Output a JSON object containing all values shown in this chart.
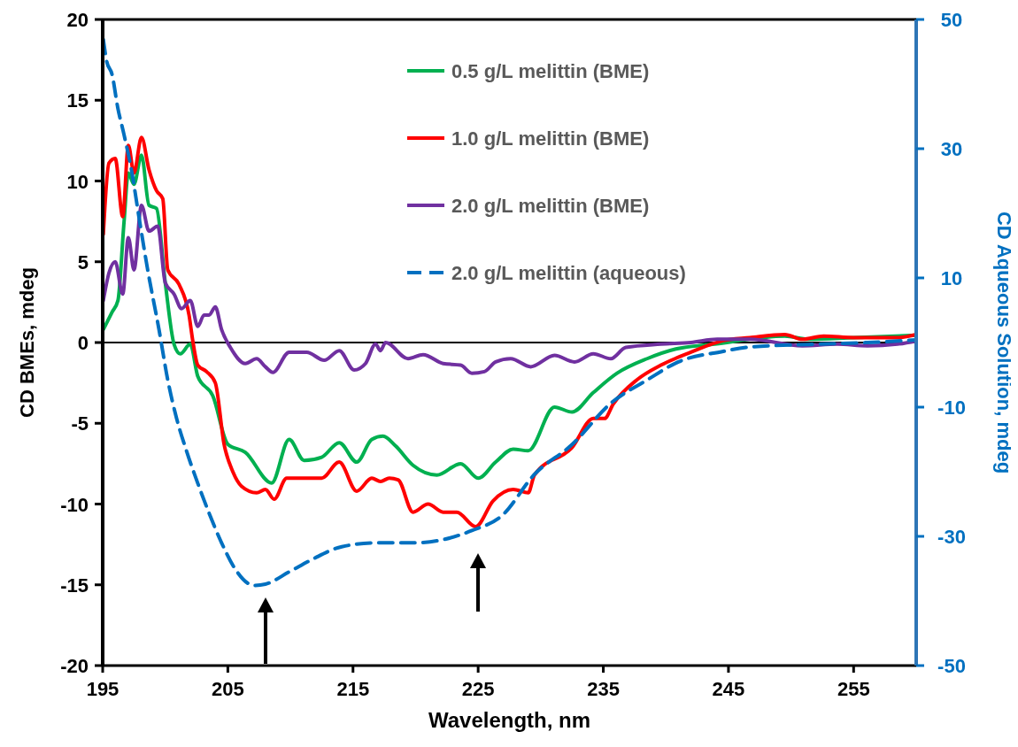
{
  "chart_data": {
    "type": "line",
    "xlabel": "Wavelength, nm",
    "ylabel": "CD BMEs, mdeg",
    "y2label": "CD Aqueous Solution, mdeg",
    "xlim": [
      195,
      260
    ],
    "xticks": [
      195,
      205,
      215,
      225,
      235,
      245,
      255
    ],
    "ylim": [
      -20,
      20
    ],
    "yticks": [
      -20,
      -15,
      -10,
      -5,
      0,
      5,
      10,
      15,
      20
    ],
    "y2lim": [
      -50,
      50
    ],
    "y2ticks": [
      -50,
      -30,
      -10,
      10,
      30,
      50
    ],
    "legend": "top right",
    "grid": false,
    "marker": "none",
    "ref_lines": [
      {
        "axis": "y",
        "value": 0,
        "color": "#000000"
      }
    ],
    "series": [
      {
        "name": "0.5 g/L melittin (BME)",
        "color": "#00b050",
        "line_style": "solid",
        "x": [
          195.05,
          195.76,
          196.22,
          196.7,
          197.05,
          197.5,
          198.1,
          198.7,
          199.3,
          200.0,
          200.7,
          201.2,
          202.0,
          202.6,
          203.8,
          205.0,
          206.4,
          208.5,
          209.9,
          211.1,
          212.5,
          213.9,
          215.3,
          216.5,
          217.4,
          218.4,
          219.8,
          221.7,
          223.6,
          225.0,
          226.4,
          227.8,
          229.0,
          231.1,
          232.5,
          234.2,
          236.1,
          238.5,
          240.8,
          243.9,
          249.5,
          251.4,
          255.0,
          260.0
        ],
        "values": [
          0.8,
          1.9,
          2.6,
          7.4,
          10.5,
          9.8,
          11.6,
          8.5,
          8.3,
          3.7,
          -0.1,
          -0.7,
          -0.1,
          -2.1,
          -3.3,
          -6.3,
          -6.8,
          -8.7,
          -6.0,
          -7.3,
          -7.1,
          -6.2,
          -7.4,
          -6.0,
          -5.8,
          -6.4,
          -7.6,
          -8.2,
          -7.5,
          -8.4,
          -7.4,
          -6.6,
          -6.7,
          -4.0,
          -4.3,
          -3.1,
          -1.9,
          -1.0,
          -0.4,
          -0.1,
          0.4,
          0.2,
          0.3,
          0.45
        ]
      },
      {
        "name": "1.0 g/L melittin (BME)",
        "color": "#ff0000",
        "line_style": "solid",
        "x": [
          195.05,
          195.5,
          196.0,
          196.6,
          197.05,
          197.5,
          198.1,
          198.7,
          199.3,
          199.8,
          200.2,
          201.1,
          201.9,
          202.2,
          202.6,
          203.3,
          204.0,
          204.7,
          205.4,
          206.1,
          207.3,
          208.0,
          208.7,
          209.7,
          211.5,
          212.5,
          213.9,
          215.3,
          216.5,
          217.2,
          217.9,
          218.6,
          219.8,
          221.0,
          222.2,
          223.3,
          224.8,
          226.2,
          227.8,
          229.0,
          229.5,
          232.5,
          234.2,
          235.1,
          235.8,
          237.7,
          239.6,
          242.0,
          244.5,
          246.7,
          249.5,
          250.9,
          252.6,
          255.0,
          258.5,
          260.0
        ],
        "values": [
          6.7,
          11.1,
          11.4,
          7.8,
          12.2,
          10.5,
          12.7,
          10.7,
          9.4,
          8.9,
          4.5,
          3.6,
          1.7,
          0.1,
          -1.4,
          -1.8,
          -2.5,
          -6.3,
          -8.0,
          -8.9,
          -9.3,
          -9.1,
          -9.7,
          -8.4,
          -8.4,
          -8.4,
          -7.4,
          -9.2,
          -8.4,
          -8.6,
          -8.4,
          -8.5,
          -10.5,
          -10.0,
          -10.5,
          -10.5,
          -11.4,
          -9.8,
          -9.1,
          -9.3,
          -8.2,
          -6.5,
          -4.7,
          -4.7,
          -3.8,
          -2.3,
          -1.4,
          -0.6,
          0.1,
          0.3,
          0.5,
          0.2,
          0.4,
          0.3,
          0.3,
          0.5
        ]
      },
      {
        "name": "2.0 g/L melittin (BME)",
        "color": "#7030a0",
        "line_style": "solid",
        "x": [
          195.05,
          195.5,
          196.0,
          196.6,
          197.05,
          197.5,
          198.1,
          198.7,
          199.4,
          200.0,
          200.7,
          201.3,
          202.0,
          202.6,
          203.1,
          203.5,
          204.0,
          204.5,
          205.2,
          206.4,
          207.3,
          208.0,
          208.6,
          209.9,
          211.3,
          212.7,
          213.9,
          215.1,
          216.0,
          216.8,
          217.2,
          217.6,
          219.4,
          220.6,
          222.2,
          223.6,
          224.5,
          225.5,
          226.4,
          227.6,
          229.2,
          231.1,
          232.7,
          234.2,
          235.6,
          236.8,
          239.6,
          242.0,
          244.1,
          246.7,
          250.9,
          253.7,
          256.1,
          258.5,
          260.0
        ],
        "values": [
          2.6,
          4.3,
          5.0,
          3.0,
          6.5,
          4.5,
          8.5,
          6.9,
          7.2,
          3.7,
          3.0,
          2.1,
          2.6,
          1.0,
          1.7,
          1.7,
          2.2,
          0.8,
          -0.3,
          -1.3,
          -1.0,
          -1.5,
          -1.85,
          -0.6,
          -0.6,
          -1.1,
          -0.5,
          -1.7,
          -1.3,
          -0.1,
          -0.5,
          0.0,
          -1.0,
          -0.75,
          -1.3,
          -1.4,
          -1.9,
          -1.8,
          -1.2,
          -1.0,
          -1.5,
          -0.8,
          -1.2,
          -0.7,
          -1.0,
          -0.3,
          -0.1,
          0.0,
          0.2,
          0.2,
          -0.2,
          -0.1,
          -0.2,
          -0.1,
          0.1
        ]
      },
      {
        "name": "2.0 g/L melittin (aqueous)",
        "color": "#0070c0",
        "line_style": "dashed",
        "axis": "y2",
        "x": [
          195.05,
          195.3,
          195.76,
          196.2,
          196.7,
          197.3,
          197.9,
          198.6,
          199.5,
          200.2,
          200.9,
          201.7,
          202.6,
          203.5,
          204.5,
          205.6,
          207.1,
          208.0,
          209.9,
          211.8,
          214.1,
          216.9,
          219.8,
          222.2,
          224.5,
          226.9,
          229.5,
          232.5,
          235.6,
          238.5,
          241.0,
          244.5,
          246.7,
          251.4,
          256.1,
          260.0
        ],
        "values": [
          46.9,
          43.7,
          41.4,
          36.4,
          32.2,
          26.7,
          19.4,
          11.2,
          2.0,
          -5.8,
          -11.7,
          -16.8,
          -21.8,
          -26.4,
          -31.0,
          -35.1,
          -37.6,
          -37.4,
          -35.5,
          -33.5,
          -31.6,
          -31.0,
          -31.0,
          -30.5,
          -29.1,
          -26.8,
          -20.4,
          -15.8,
          -9.4,
          -5.8,
          -3.0,
          -1.4,
          -0.7,
          -0.3,
          0.0,
          0.4
        ]
      }
    ]
  }
}
